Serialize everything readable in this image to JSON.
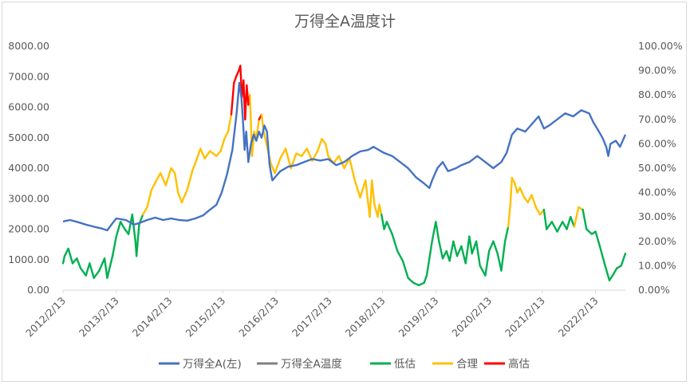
{
  "chart_data": {
    "type": "line",
    "title": "万得全A温度计",
    "grid": false,
    "legend_placement": "bottom",
    "x_ticks": [
      "2012/2/13",
      "2013/2/13",
      "2014/2/13",
      "2015/2/13",
      "2016/2/13",
      "2017/2/13",
      "2018/2/13",
      "2019/2/13",
      "2020/2/13",
      "2021/2/13",
      "2022/2/13"
    ],
    "x_range": [
      2012.12,
      2022.68
    ],
    "y_left": {
      "ticks": [
        "0.00",
        "1000.00",
        "2000.00",
        "3000.00",
        "4000.00",
        "5000.00",
        "6000.00",
        "7000.00",
        "8000.00"
      ],
      "range": [
        0,
        8000
      ]
    },
    "y_right": {
      "ticks": [
        "0.00%",
        "10.00%",
        "20.00%",
        "30.00%",
        "40.00%",
        "50.00%",
        "60.00%",
        "70.00%",
        "80.00%",
        "90.00%",
        "100.00%"
      ],
      "range": [
        0,
        100
      ]
    },
    "thresholds": {
      "low_below": 30,
      "high_above": 70
    },
    "colors": {
      "index": "#4472c4",
      "temp": "#808080",
      "low": "#00b050",
      "mid": "#ffc000",
      "high": "#ff0000"
    },
    "legend": [
      "万得全A(左)",
      "万得全A温度",
      "低估",
      "合理",
      "高估"
    ],
    "series": [
      {
        "name": "万得全A(左)",
        "axis": "left",
        "points": [
          [
            2012.12,
            2250
          ],
          [
            2012.25,
            2300
          ],
          [
            2012.4,
            2230
          ],
          [
            2012.55,
            2150
          ],
          [
            2012.7,
            2080
          ],
          [
            2012.85,
            2020
          ],
          [
            2012.95,
            1960
          ],
          [
            2013.05,
            2200
          ],
          [
            2013.12,
            2350
          ],
          [
            2013.3,
            2300
          ],
          [
            2013.45,
            2150
          ],
          [
            2013.55,
            2200
          ],
          [
            2013.7,
            2300
          ],
          [
            2013.85,
            2380
          ],
          [
            2014.0,
            2300
          ],
          [
            2014.15,
            2350
          ],
          [
            2014.3,
            2300
          ],
          [
            2014.45,
            2280
          ],
          [
            2014.6,
            2350
          ],
          [
            2014.75,
            2450
          ],
          [
            2014.85,
            2600
          ],
          [
            2015.0,
            2800
          ],
          [
            2015.1,
            3200
          ],
          [
            2015.2,
            3800
          ],
          [
            2015.3,
            4600
          ],
          [
            2015.38,
            5800
          ],
          [
            2015.43,
            6800
          ],
          [
            2015.47,
            6300
          ],
          [
            2015.5,
            5500
          ],
          [
            2015.53,
            4600
          ],
          [
            2015.56,
            5200
          ],
          [
            2015.6,
            4200
          ],
          [
            2015.65,
            4800
          ],
          [
            2015.7,
            5100
          ],
          [
            2015.75,
            4900
          ],
          [
            2015.8,
            5200
          ],
          [
            2015.85,
            5000
          ],
          [
            2015.9,
            5400
          ],
          [
            2015.95,
            5200
          ],
          [
            2016.0,
            4100
          ],
          [
            2016.05,
            3600
          ],
          [
            2016.1,
            3700
          ],
          [
            2016.2,
            3900
          ],
          [
            2016.35,
            4050
          ],
          [
            2016.5,
            4100
          ],
          [
            2016.65,
            4200
          ],
          [
            2016.8,
            4300
          ],
          [
            2016.95,
            4250
          ],
          [
            2017.1,
            4300
          ],
          [
            2017.25,
            4100
          ],
          [
            2017.4,
            4200
          ],
          [
            2017.55,
            4400
          ],
          [
            2017.7,
            4550
          ],
          [
            2017.85,
            4600
          ],
          [
            2017.95,
            4700
          ],
          [
            2018.05,
            4600
          ],
          [
            2018.15,
            4500
          ],
          [
            2018.3,
            4400
          ],
          [
            2018.45,
            4200
          ],
          [
            2018.6,
            4000
          ],
          [
            2018.75,
            3700
          ],
          [
            2018.9,
            3500
          ],
          [
            2019.0,
            3350
          ],
          [
            2019.05,
            3600
          ],
          [
            2019.15,
            4000
          ],
          [
            2019.25,
            4200
          ],
          [
            2019.35,
            3900
          ],
          [
            2019.5,
            4000
          ],
          [
            2019.6,
            4100
          ],
          [
            2019.75,
            4200
          ],
          [
            2019.9,
            4400
          ],
          [
            2020.05,
            4200
          ],
          [
            2020.2,
            4000
          ],
          [
            2020.35,
            4200
          ],
          [
            2020.45,
            4500
          ],
          [
            2020.55,
            5100
          ],
          [
            2020.65,
            5300
          ],
          [
            2020.8,
            5200
          ],
          [
            2020.95,
            5500
          ],
          [
            2021.05,
            5700
          ],
          [
            2021.15,
            5300
          ],
          [
            2021.25,
            5400
          ],
          [
            2021.4,
            5600
          ],
          [
            2021.55,
            5800
          ],
          [
            2021.7,
            5700
          ],
          [
            2021.85,
            5900
          ],
          [
            2022.0,
            5800
          ],
          [
            2022.08,
            5500
          ],
          [
            2022.15,
            5300
          ],
          [
            2022.25,
            5000
          ],
          [
            2022.32,
            4700
          ],
          [
            2022.36,
            4400
          ],
          [
            2022.4,
            4800
          ],
          [
            2022.5,
            4900
          ],
          [
            2022.58,
            4700
          ],
          [
            2022.68,
            5100
          ]
        ]
      },
      {
        "name": "万得全A温度",
        "axis": "right",
        "points": [
          [
            2012.12,
            11
          ],
          [
            2012.15,
            14
          ],
          [
            2012.22,
            17
          ],
          [
            2012.3,
            11
          ],
          [
            2012.38,
            13
          ],
          [
            2012.45,
            9
          ],
          [
            2012.55,
            6
          ],
          [
            2012.62,
            11
          ],
          [
            2012.7,
            5
          ],
          [
            2012.8,
            8
          ],
          [
            2012.9,
            13
          ],
          [
            2012.95,
            5
          ],
          [
            2013.05,
            14
          ],
          [
            2013.12,
            22
          ],
          [
            2013.2,
            28
          ],
          [
            2013.28,
            25
          ],
          [
            2013.35,
            23
          ],
          [
            2013.42,
            31
          ],
          [
            2013.48,
            20
          ],
          [
            2013.5,
            14
          ],
          [
            2013.55,
            27
          ],
          [
            2013.62,
            31
          ],
          [
            2013.7,
            34
          ],
          [
            2013.78,
            41
          ],
          [
            2013.85,
            44
          ],
          [
            2013.95,
            48
          ],
          [
            2014.05,
            43
          ],
          [
            2014.15,
            50
          ],
          [
            2014.22,
            48
          ],
          [
            2014.28,
            40
          ],
          [
            2014.35,
            36
          ],
          [
            2014.45,
            41
          ],
          [
            2014.55,
            49
          ],
          [
            2014.62,
            53
          ],
          [
            2014.7,
            58
          ],
          [
            2014.78,
            54
          ],
          [
            2014.88,
            57
          ],
          [
            2015.0,
            55
          ],
          [
            2015.08,
            57
          ],
          [
            2015.15,
            62
          ],
          [
            2015.22,
            65
          ],
          [
            2015.28,
            72
          ],
          [
            2015.33,
            85
          ],
          [
            2015.38,
            88
          ],
          [
            2015.42,
            90
          ],
          [
            2015.45,
            92
          ],
          [
            2015.48,
            79
          ],
          [
            2015.51,
            86
          ],
          [
            2015.54,
            70
          ],
          [
            2015.57,
            84
          ],
          [
            2015.6,
            76
          ],
          [
            2015.63,
            80
          ],
          [
            2015.67,
            55
          ],
          [
            2015.71,
            65
          ],
          [
            2015.75,
            62
          ],
          [
            2015.8,
            70
          ],
          [
            2015.85,
            72
          ],
          [
            2015.88,
            66
          ],
          [
            2015.92,
            62
          ],
          [
            2015.98,
            56
          ],
          [
            2016.02,
            52
          ],
          [
            2016.1,
            48
          ],
          [
            2016.2,
            54
          ],
          [
            2016.3,
            58
          ],
          [
            2016.4,
            50
          ],
          [
            2016.5,
            56
          ],
          [
            2016.6,
            55
          ],
          [
            2016.7,
            58
          ],
          [
            2016.8,
            53
          ],
          [
            2016.9,
            57
          ],
          [
            2016.98,
            62
          ],
          [
            2017.05,
            60
          ],
          [
            2017.1,
            55
          ],
          [
            2017.2,
            52
          ],
          [
            2017.3,
            55
          ],
          [
            2017.4,
            50
          ],
          [
            2017.5,
            54
          ],
          [
            2017.6,
            45
          ],
          [
            2017.7,
            38
          ],
          [
            2017.8,
            45
          ],
          [
            2017.88,
            30
          ],
          [
            2017.92,
            45
          ],
          [
            2017.97,
            35
          ],
          [
            2018.03,
            30
          ],
          [
            2018.06,
            35
          ],
          [
            2018.1,
            31
          ],
          [
            2018.15,
            25
          ],
          [
            2018.2,
            28
          ],
          [
            2018.3,
            23
          ],
          [
            2018.4,
            16
          ],
          [
            2018.5,
            12
          ],
          [
            2018.6,
            5
          ],
          [
            2018.7,
            3
          ],
          [
            2018.8,
            2
          ],
          [
            2018.9,
            3
          ],
          [
            2018.95,
            6
          ],
          [
            2019.05,
            20
          ],
          [
            2019.12,
            28
          ],
          [
            2019.18,
            20
          ],
          [
            2019.25,
            13
          ],
          [
            2019.32,
            16
          ],
          [
            2019.38,
            12
          ],
          [
            2019.45,
            20
          ],
          [
            2019.52,
            14
          ],
          [
            2019.6,
            18
          ],
          [
            2019.68,
            11
          ],
          [
            2019.75,
            22
          ],
          [
            2019.8,
            15
          ],
          [
            2019.88,
            20
          ],
          [
            2019.95,
            10
          ],
          [
            2020.05,
            6
          ],
          [
            2020.12,
            16
          ],
          [
            2020.2,
            20
          ],
          [
            2020.28,
            15
          ],
          [
            2020.35,
            8
          ],
          [
            2020.42,
            20
          ],
          [
            2020.48,
            26
          ],
          [
            2020.52,
            35
          ],
          [
            2020.55,
            46
          ],
          [
            2020.6,
            44
          ],
          [
            2020.65,
            40
          ],
          [
            2020.7,
            42
          ],
          [
            2020.78,
            38
          ],
          [
            2020.85,
            36
          ],
          [
            2020.92,
            39
          ],
          [
            2021.0,
            34
          ],
          [
            2021.08,
            31
          ],
          [
            2021.15,
            33
          ],
          [
            2021.2,
            25
          ],
          [
            2021.3,
            28
          ],
          [
            2021.4,
            24
          ],
          [
            2021.5,
            28
          ],
          [
            2021.58,
            25
          ],
          [
            2021.65,
            30
          ],
          [
            2021.72,
            26
          ],
          [
            2021.8,
            34
          ],
          [
            2021.88,
            33
          ],
          [
            2021.95,
            25
          ],
          [
            2022.05,
            23
          ],
          [
            2022.12,
            24
          ],
          [
            2022.2,
            18
          ],
          [
            2022.3,
            10
          ],
          [
            2022.38,
            4
          ],
          [
            2022.44,
            6
          ],
          [
            2022.52,
            9
          ],
          [
            2022.6,
            10
          ],
          [
            2022.68,
            15
          ]
        ]
      }
    ]
  }
}
